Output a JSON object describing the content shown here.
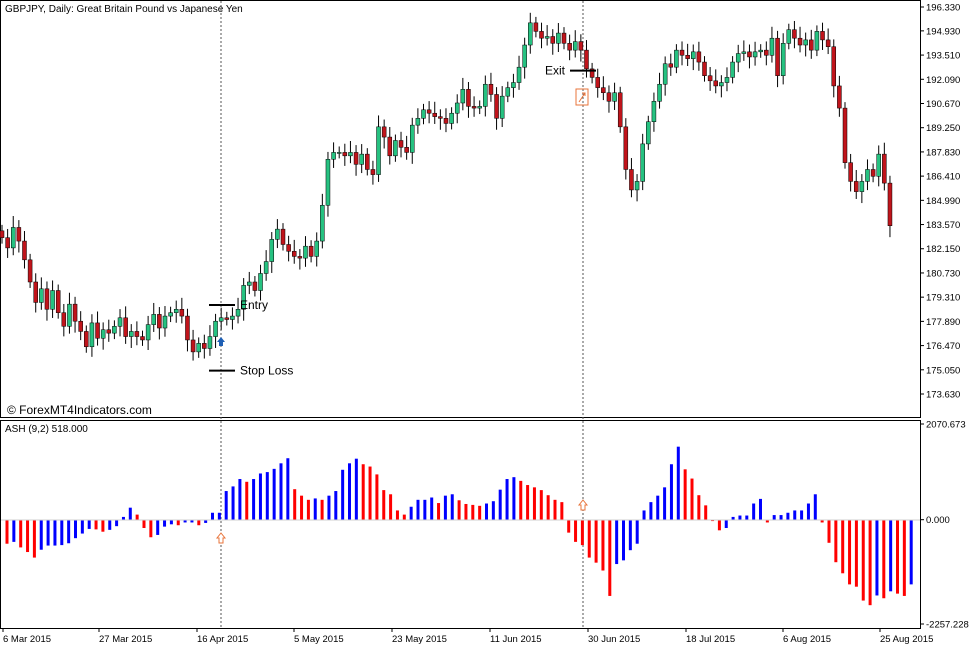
{
  "header": {
    "symbol_label": "GBPJPY, Daily:  Great Britain Pound vs Japanese Yen"
  },
  "watermark": "© ForexMT4Indicators.com",
  "annotations": {
    "entry": "Entry",
    "stop_loss": "Stop Loss",
    "exit": "Exit"
  },
  "indicator": {
    "label": "ASH (9,2) 518.000"
  },
  "colors": {
    "bull_candle": "#26c281",
    "bear_candle": "#c0141b",
    "wick": "#000000",
    "ash_positive": "#0000ff",
    "ash_negative": "#ff0000",
    "entry_arrow": "#1e5fb4",
    "exit_marker": "#e8743b"
  },
  "chart_data": [
    {
      "type": "candlestick",
      "title": "GBPJPY, Daily:  Great Britain Pound vs Japanese Yen",
      "ylim": [
        172.9,
        196.4
      ],
      "y_ticks": [
        "196.330",
        "194.930",
        "193.510",
        "192.090",
        "190.670",
        "189.250",
        "187.830",
        "186.410",
        "184.990",
        "183.570",
        "182.150",
        "180.730",
        "179.310",
        "177.890",
        "176.470",
        "175.050",
        "173.630"
      ],
      "x_ticks": [
        "6 Mar 2015",
        "27 Mar 2015",
        "16 Apr 2015",
        "5 May 2015",
        "23 May 2015",
        "11 Jun 2015",
        "30 Jun 2015",
        "18 Jul 2015",
        "6 Aug 2015",
        "25 Aug 2015"
      ],
      "entry_level": 178.85,
      "stop_loss_level": 175.0,
      "exit_level": 192.6,
      "closes": [
        182.8,
        182.2,
        183.4,
        182.6,
        181.5,
        180.2,
        179.0,
        179.8,
        178.6,
        179.7,
        178.4,
        177.6,
        178.9,
        177.9,
        177.3,
        176.4,
        177.8,
        176.9,
        177.4,
        177.2,
        177.6,
        178.1,
        177.0,
        177.3,
        177.0,
        176.8,
        177.7,
        178.3,
        177.5,
        178.2,
        178.4,
        178.6,
        178.2,
        176.8,
        176.1,
        176.6,
        176.3,
        177.0,
        177.9,
        178.1,
        178.0,
        178.2,
        178.6,
        180.0,
        180.2,
        179.7,
        180.7,
        181.4,
        182.7,
        183.3,
        182.4,
        182.0,
        181.7,
        181.6,
        182.3,
        181.7,
        182.6,
        184.7,
        187.4,
        187.8,
        187.8,
        187.6,
        187.8,
        187.1,
        187.7,
        186.8,
        186.5,
        189.3,
        188.7,
        187.6,
        188.5,
        188.1,
        187.8,
        189.4,
        189.8,
        190.3,
        190.1,
        189.9,
        189.8,
        189.5,
        190.1,
        190.7,
        191.5,
        190.5,
        190.4,
        190.5,
        191.8,
        191.2,
        189.8,
        191.1,
        191.6,
        191.9,
        192.8,
        194.1,
        195.4,
        194.9,
        194.5,
        194.6,
        194.2,
        194.8,
        194.2,
        193.8,
        194.3,
        193.8,
        192.7,
        192.2,
        191.6,
        191.3,
        190.8,
        191.3,
        189.3,
        186.8,
        185.6,
        186.1,
        188.3,
        189.6,
        190.8,
        191.8,
        193.0,
        192.8,
        193.8,
        193.5,
        193.3,
        193.7,
        193.1,
        192.3,
        192.0,
        191.7,
        191.9,
        192.2,
        193.1,
        193.6,
        193.7,
        193.4,
        193.7,
        193.8,
        193.5,
        194.5,
        192.3,
        194.2,
        195.0,
        194.5,
        194.1,
        194.4,
        193.8,
        194.9,
        194.4,
        194.0,
        191.7,
        190.4,
        187.2,
        186.1,
        185.5,
        186.1,
        186.8,
        186.4,
        187.7,
        186.0,
        183.5
      ],
      "ash_ylim": [
        -2257.228,
        2070.673
      ],
      "ash_ticks": [
        "2070.673",
        "0.000",
        "-2257.228"
      ],
      "ash_values": [
        -520,
        -480,
        -600,
        -700,
        -820,
        -650,
        -560,
        -560,
        -550,
        -510,
        -400,
        -300,
        -200,
        -210,
        -260,
        -220,
        -140,
        60,
        260,
        110,
        -180,
        -380,
        -330,
        -150,
        -100,
        -120,
        -60,
        -60,
        -120,
        -70,
        150,
        150,
        620,
        720,
        880,
        820,
        880,
        1000,
        1030,
        1100,
        1220,
        1330,
        660,
        520,
        430,
        460,
        430,
        520,
        620,
        1080,
        1220,
        1320,
        1200,
        1150,
        980,
        640,
        550,
        200,
        110,
        280,
        430,
        430,
        480,
        360,
        520,
        550,
        420,
        340,
        320,
        300,
        350,
        400,
        650,
        880,
        920,
        840,
        750,
        700,
        640,
        530,
        430,
        380,
        -280,
        -480,
        -550,
        -820,
        -930,
        -1100,
        -1650,
        -960,
        -880,
        -660,
        -520,
        200,
        380,
        520,
        700,
        1200,
        1580,
        1090,
        890,
        530,
        310,
        -30,
        -230,
        -180,
        60,
        90,
        90,
        350,
        450,
        -60,
        100,
        100,
        150,
        200,
        200,
        350,
        550,
        -60,
        -500,
        -920,
        -1160,
        -1400,
        -1450,
        -1750,
        -1850,
        -1640,
        -1700,
        -1550,
        -1600,
        -1650,
        -1400
      ]
    }
  ]
}
